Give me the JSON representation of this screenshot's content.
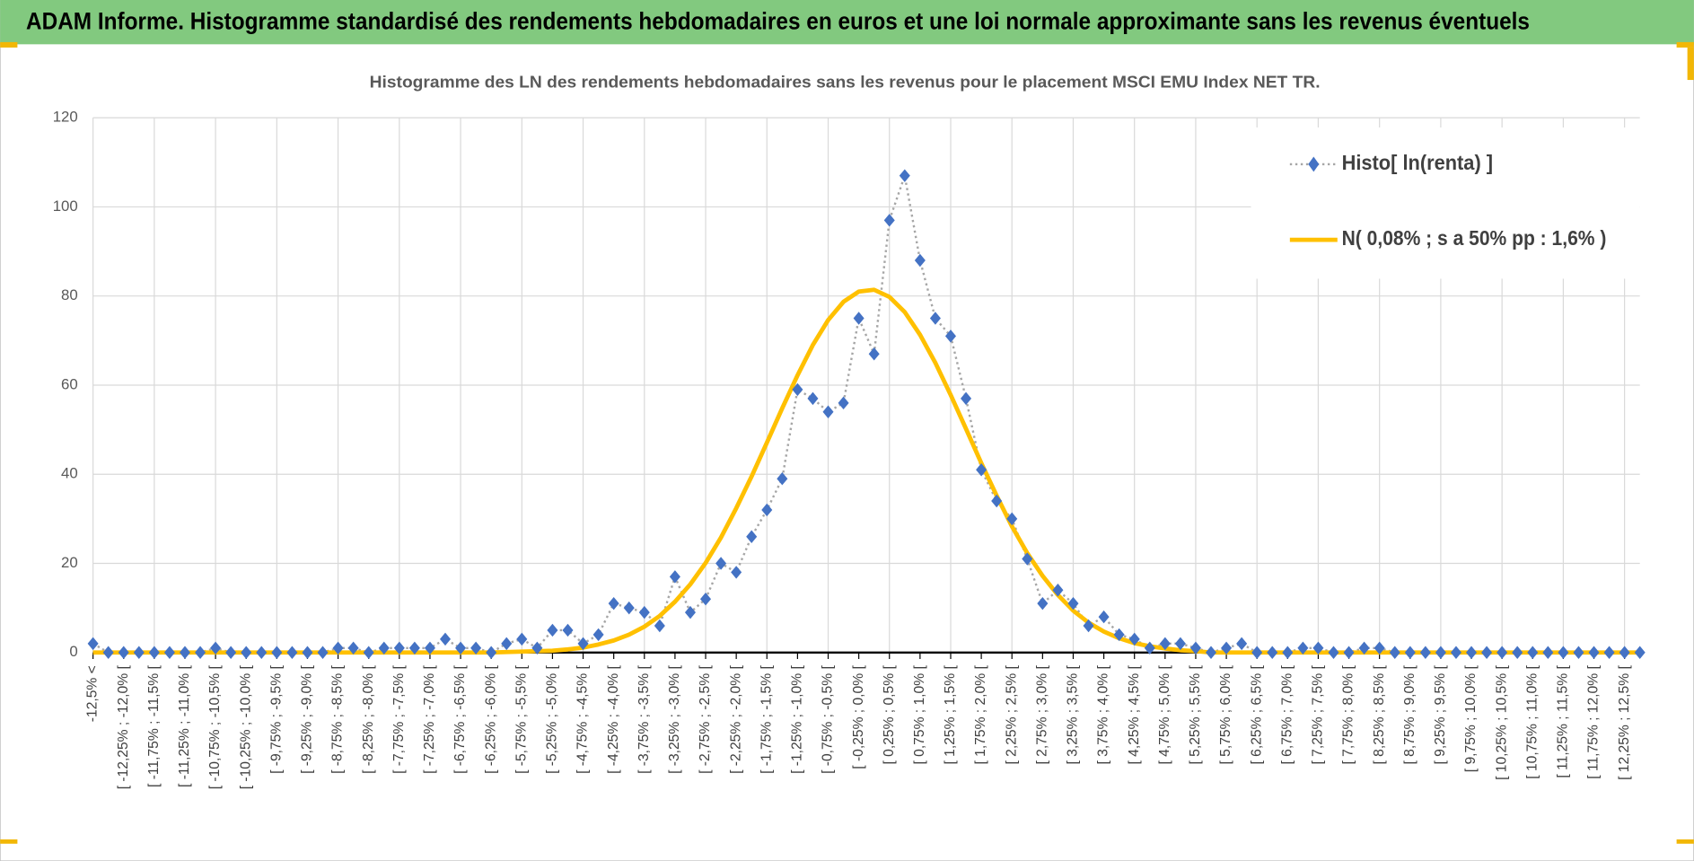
{
  "header": {
    "title": "ADAM Informe. Histogramme standardisé des rendements hebdomadaires en euros et une loi normale approximante sans les revenus éventuels"
  },
  "chart_data": {
    "type": "line",
    "title": "Histogramme des LN des rendements hebdomadaires sans les revenus pour le placement MSCI EMU Index NET TR.",
    "categories": [
      "-12,5% <",
      null,
      "[ -12,25% ; -12,0% [",
      null,
      "[ -11,75% ; -11,5% [",
      null,
      "[ -11,25% ; -11,0% [",
      null,
      "[ -10,75% ; -10,5% [",
      null,
      "[ -10,25% ; -10,0% [",
      null,
      "[ -9,75% ; -9,5% [",
      null,
      "[ -9,25% ; -9,0% [",
      null,
      "[ -8,75% ; -8,5% [",
      null,
      "[ -8,25% ; -8,0% [",
      null,
      "[ -7,75% ; -7,5% [",
      null,
      "[ -7,25% ; -7,0% [",
      null,
      "[ -6,75% ; -6,5% [",
      null,
      "[ -6,25% ; -6,0% [",
      null,
      "[ -5,75% ; -5,5% [",
      null,
      "[ -5,25% ; -5,0% [",
      null,
      "[ -4,75% ; -4,5% [",
      null,
      "[ -4,25% ; -4,0% [",
      null,
      "[ -3,75% ; -3,5% [",
      null,
      "[ -3,25% ; -3,0% [",
      null,
      "[ -2,75% ; -2,5% [",
      null,
      "[ -2,25% ; -2,0% [",
      null,
      "[ -1,75% ; -1,5% [",
      null,
      "[ -1,25% ; -1,0% [",
      null,
      "[ -0,75% ; -0,5% [",
      null,
      "[ -0,25% ; 0,0% [",
      null,
      "[ 0,25% ; 0,5% [",
      null,
      "[ 0,75% ; 1,0% [",
      null,
      "[ 1,25% ; 1,5% [",
      null,
      "[ 1,75% ; 2,0% [",
      null,
      "[ 2,25% ; 2,5% [",
      null,
      "[ 2,75% ; 3,0% [",
      null,
      "[ 3,25% ; 3,5% [",
      null,
      "[ 3,75% ; 4,0% [",
      null,
      "[ 4,25% ; 4,5% [",
      null,
      "[ 4,75% ; 5,0% [",
      null,
      "[ 5,25% ; 5,5% [",
      null,
      "[ 5,75% ; 6,0% [",
      null,
      "[ 6,25% ; 6,5% [",
      null,
      "[ 6,75% ; 7,0% [",
      null,
      "[ 7,25% ; 7,5% [",
      null,
      "[ 7,75% ; 8,0% [",
      null,
      "[ 8,25% ; 8,5% [",
      null,
      "[ 8,75% ; 9,0% [",
      null,
      "[ 9,25% ; 9,5% [",
      null,
      "[ 9,75% ; 10,0% [",
      null,
      "[ 10,25% ; 10,5% [",
      null,
      "[ 10,75% ; 11,0% [",
      null,
      "[ 11,25% ; 11,5% [",
      null,
      "[ 11,75% ; 12,0% [",
      null,
      "[ 12,25% ; 12,5% [",
      null
    ],
    "series": [
      {
        "name": "Histo[ ln(renta) ]",
        "color": "#4472c4",
        "line_color": "#a6a6a6",
        "values": [
          2,
          0,
          0,
          0,
          0,
          0,
          0,
          0,
          1,
          0,
          0,
          0,
          0,
          0,
          0,
          0,
          1,
          1,
          0,
          1,
          1,
          1,
          1,
          3,
          1,
          1,
          0,
          2,
          3,
          1,
          5,
          5,
          2,
          4,
          11,
          10,
          9,
          6,
          17,
          9,
          12,
          20,
          18,
          26,
          32,
          39,
          59,
          57,
          54,
          56,
          75,
          67,
          97,
          107,
          88,
          75,
          71,
          57,
          41,
          34,
          30,
          21,
          11,
          14,
          11,
          6,
          8,
          4,
          3,
          1,
          2,
          2,
          1,
          0,
          1,
          2,
          0,
          0,
          0,
          1,
          1,
          0,
          0,
          1,
          1,
          0,
          0,
          0,
          0,
          0,
          0,
          0,
          0,
          0,
          0,
          0,
          0,
          0,
          0,
          0,
          0,
          0
        ]
      },
      {
        "name": "N( 0,08% ; s a 50% pp : 1,6% )",
        "color": "#ffc000",
        "values": [
          0,
          0,
          0,
          0,
          0,
          0,
          0,
          0,
          0,
          0,
          0,
          0,
          0,
          0,
          0,
          0,
          0,
          0,
          0,
          0,
          0,
          0,
          0,
          0,
          0,
          0,
          0,
          0.1,
          0.2,
          0.3,
          0.4,
          0.7,
          1.1,
          1.8,
          2.7,
          4.0,
          5.8,
          8.2,
          11.4,
          15.3,
          20.1,
          25.8,
          32.4,
          39.5,
          47.1,
          54.8,
          62.2,
          69.0,
          74.6,
          78.7,
          81.0,
          81.4,
          79.8,
          76.4,
          71.3,
          65.0,
          57.8,
          50.2,
          42.5,
          35.2,
          28.3,
          22.3,
          17.2,
          12.9,
          9.4,
          6.7,
          4.7,
          3.2,
          2.1,
          1.4,
          0.9,
          0.5,
          0.3,
          0,
          0,
          0,
          0,
          0,
          0,
          0,
          0,
          0,
          0,
          0,
          0,
          0,
          0,
          0,
          0,
          0,
          0,
          0,
          0,
          0,
          0,
          0,
          0,
          0,
          0,
          0,
          0,
          0
        ]
      }
    ],
    "ylim": [
      0,
      120
    ],
    "yticks": [
      0,
      20,
      40,
      60,
      80,
      100,
      120
    ],
    "grid": true,
    "legend": "top-right"
  }
}
